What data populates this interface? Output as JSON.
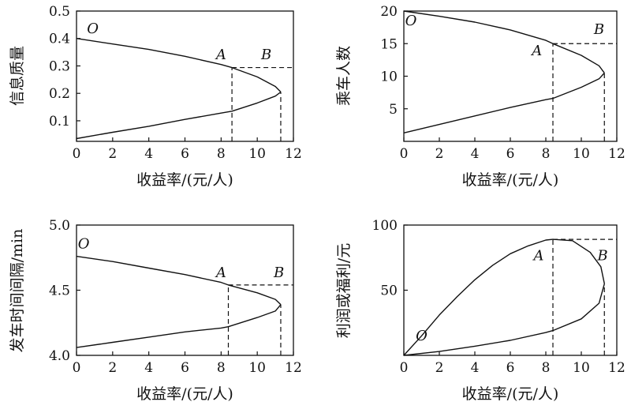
{
  "chart_data": [
    {
      "type": "line",
      "xlabel": "收益率/(元/人)",
      "ylabel": "信息质量",
      "xlim": [
        0,
        12
      ],
      "ylim": [
        0.025,
        0.5
      ],
      "x_ticks": [
        "0",
        "2",
        "4",
        "6",
        "8",
        "10",
        "12"
      ],
      "y_ticks": [
        {
          "value": 0.1,
          "label": "0.1"
        },
        {
          "value": 0.2,
          "label": "0.2"
        },
        {
          "value": 0.3,
          "label": "0.3"
        },
        {
          "value": 0.4,
          "label": "0.4"
        },
        {
          "value": 0.5,
          "label": "0.5"
        }
      ],
      "curve_upper": [
        [
          0,
          0.4
        ],
        [
          2,
          0.38
        ],
        [
          4,
          0.36
        ],
        [
          6,
          0.335
        ],
        [
          8,
          0.305
        ],
        [
          8.6,
          0.294
        ],
        [
          10,
          0.26
        ],
        [
          11,
          0.225
        ],
        [
          11.3,
          0.205
        ]
      ],
      "curve_lower": [
        [
          0,
          0.035
        ],
        [
          2,
          0.058
        ],
        [
          4,
          0.08
        ],
        [
          6,
          0.105
        ],
        [
          8,
          0.128
        ],
        [
          8.6,
          0.135
        ],
        [
          10,
          0.165
        ],
        [
          11,
          0.19
        ],
        [
          11.3,
          0.205
        ]
      ],
      "guides": [
        {
          "type": "vline",
          "x": 8.6,
          "y0": 0.025,
          "y1": 0.294
        },
        {
          "type": "vline",
          "x": 11.3,
          "y0": 0.025,
          "y1": 0.205
        },
        {
          "type": "hline",
          "y": 0.294,
          "x0": 8.6,
          "x1": 12
        }
      ],
      "annotations": [
        {
          "text": "O",
          "x": 0.9,
          "y": 0.42
        },
        {
          "text": "A",
          "x": 8.0,
          "y": 0.325
        },
        {
          "text": "B",
          "x": 10.5,
          "y": 0.325
        }
      ]
    },
    {
      "type": "line",
      "xlabel": "收益率/(元/人)",
      "ylabel": "乘车人数",
      "xlim": [
        0,
        12
      ],
      "ylim": [
        0,
        20
      ],
      "x_ticks": [
        "0",
        "2",
        "4",
        "6",
        "8",
        "10",
        "12"
      ],
      "y_ticks": [
        {
          "value": 5,
          "label": "5"
        },
        {
          "value": 10,
          "label": "10"
        },
        {
          "value": 15,
          "label": "15"
        },
        {
          "value": 20,
          "label": "20"
        }
      ],
      "curve_upper": [
        [
          0,
          20
        ],
        [
          2,
          19.2
        ],
        [
          4,
          18.3
        ],
        [
          6,
          17.1
        ],
        [
          8,
          15.5
        ],
        [
          8.4,
          15.0
        ],
        [
          10,
          13.2
        ],
        [
          11,
          11.6
        ],
        [
          11.3,
          10.5
        ]
      ],
      "curve_lower": [
        [
          0,
          1.3
        ],
        [
          2,
          2.6
        ],
        [
          4,
          3.9
        ],
        [
          6,
          5.2
        ],
        [
          8,
          6.4
        ],
        [
          8.4,
          6.6
        ],
        [
          10,
          8.3
        ],
        [
          11,
          9.6
        ],
        [
          11.3,
          10.5
        ]
      ],
      "guides": [
        {
          "type": "vline",
          "x": 8.4,
          "y0": 0,
          "y1": 15.0
        },
        {
          "type": "vline",
          "x": 11.3,
          "y0": 0,
          "y1": 10.5
        },
        {
          "type": "hline",
          "y": 15.0,
          "x0": 8.4,
          "x1": 12
        }
      ],
      "annotations": [
        {
          "text": "O",
          "x": 0.4,
          "y": 17.8
        },
        {
          "text": "A",
          "x": 7.5,
          "y": 13.2
        },
        {
          "text": "B",
          "x": 11.0,
          "y": 16.5
        }
      ]
    },
    {
      "type": "line",
      "xlabel": "收益率/(元/人)",
      "ylabel": "发车时间间隔/min",
      "xlim": [
        0,
        12
      ],
      "ylim": [
        4.0,
        5.0
      ],
      "x_ticks": [
        "0",
        "2",
        "4",
        "6",
        "8",
        "10",
        "12"
      ],
      "y_ticks": [
        {
          "value": 4.0,
          "label": "4.0"
        },
        {
          "value": 4.5,
          "label": "4.5"
        },
        {
          "value": 5.0,
          "label": "5.0"
        }
      ],
      "curve_upper": [
        [
          0,
          4.76
        ],
        [
          2,
          4.72
        ],
        [
          4,
          4.67
        ],
        [
          6,
          4.62
        ],
        [
          8,
          4.56
        ],
        [
          8.4,
          4.54
        ],
        [
          10,
          4.48
        ],
        [
          11,
          4.43
        ],
        [
          11.3,
          4.39
        ]
      ],
      "curve_lower": [
        [
          0,
          4.06
        ],
        [
          2,
          4.1
        ],
        [
          4,
          4.14
        ],
        [
          6,
          4.18
        ],
        [
          8,
          4.21
        ],
        [
          8.4,
          4.22
        ],
        [
          10,
          4.29
        ],
        [
          11,
          4.34
        ],
        [
          11.3,
          4.39
        ]
      ],
      "guides": [
        {
          "type": "vline",
          "x": 8.4,
          "y0": 4.0,
          "y1": 4.54
        },
        {
          "type": "vline",
          "x": 11.3,
          "y0": 4.0,
          "y1": 4.39
        },
        {
          "type": "hline",
          "y": 4.54,
          "x0": 8.4,
          "x1": 12
        }
      ],
      "annotations": [
        {
          "text": "O",
          "x": 0.4,
          "y": 4.82
        },
        {
          "text": "A",
          "x": 8.0,
          "y": 4.6
        },
        {
          "text": "B",
          "x": 11.2,
          "y": 4.6
        }
      ]
    },
    {
      "type": "line",
      "xlabel": "收益率/(元/人)",
      "ylabel": "利润或福利/元",
      "xlim": [
        0,
        12
      ],
      "ylim": [
        0,
        100
      ],
      "x_ticks": [
        "0",
        "2",
        "4",
        "6",
        "8",
        "10",
        "12"
      ],
      "y_ticks": [
        {
          "value": 50,
          "label": "50"
        },
        {
          "value": 100,
          "label": "100"
        }
      ],
      "curve_upper": [
        [
          0,
          0
        ],
        [
          1,
          15
        ],
        [
          2,
          31
        ],
        [
          3,
          45
        ],
        [
          4,
          58
        ],
        [
          5,
          69
        ],
        [
          6,
          78
        ],
        [
          7,
          84
        ],
        [
          8,
          88.5
        ],
        [
          8.4,
          89
        ],
        [
          9.5,
          88
        ],
        [
          10.5,
          79
        ],
        [
          11.1,
          68
        ],
        [
          11.3,
          55
        ]
      ],
      "curve_lower": [
        [
          0,
          0
        ],
        [
          2,
          3
        ],
        [
          4,
          7
        ],
        [
          6,
          11.5
        ],
        [
          8,
          17.5
        ],
        [
          8.4,
          19
        ],
        [
          10,
          28
        ],
        [
          11,
          40
        ],
        [
          11.3,
          55
        ]
      ],
      "guides": [
        {
          "type": "vline",
          "x": 8.4,
          "y0": 0,
          "y1": 89
        },
        {
          "type": "vline",
          "x": 11.3,
          "y0": 0,
          "y1": 55
        },
        {
          "type": "hline",
          "y": 89,
          "x0": 8.4,
          "x1": 12
        }
      ],
      "annotations": [
        {
          "text": "O",
          "x": 1.0,
          "y": 11.5
        },
        {
          "text": "A",
          "x": 7.6,
          "y": 73
        },
        {
          "text": "B",
          "x": 11.2,
          "y": 73
        }
      ]
    }
  ]
}
